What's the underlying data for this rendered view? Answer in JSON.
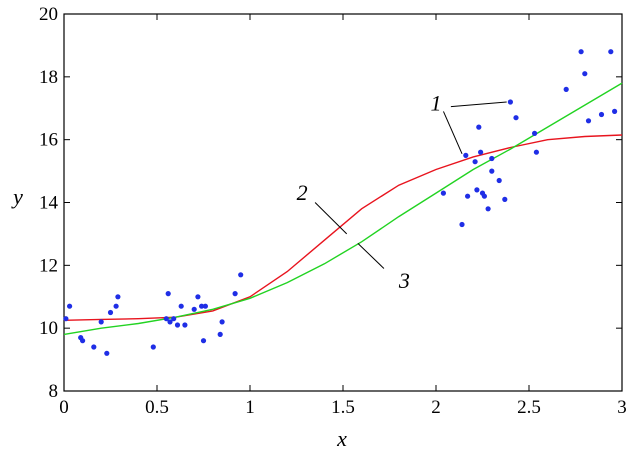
{
  "chart_data": {
    "type": "scatter",
    "xlabel": "x",
    "ylabel": "y",
    "xlim": [
      0,
      3
    ],
    "ylim": [
      8,
      20
    ],
    "xticks": [
      0,
      0.5,
      1,
      1.5,
      2,
      2.5,
      3
    ],
    "xtick_labels": [
      "0",
      "0.5",
      "1",
      "1.5",
      "2",
      "2.5",
      "3"
    ],
    "yticks": [
      8,
      10,
      12,
      14,
      16,
      18,
      20
    ],
    "ytick_labels": [
      "8",
      "10",
      "12",
      "14",
      "16",
      "18",
      "20"
    ],
    "grid": false,
    "legend": "none",
    "points": {
      "color": "#1f2ee6",
      "x": [
        0.01,
        0.03,
        0.09,
        0.1,
        0.16,
        0.2,
        0.23,
        0.25,
        0.28,
        0.29,
        0.48,
        0.55,
        0.56,
        0.57,
        0.59,
        0.61,
        0.63,
        0.65,
        0.7,
        0.72,
        0.74,
        0.75,
        0.76,
        0.84,
        0.85,
        0.92,
        0.95,
        2.04,
        2.14,
        2.16,
        2.17,
        2.21,
        2.22,
        2.23,
        2.24,
        2.25,
        2.26,
        2.28,
        2.3,
        2.3,
        2.34,
        2.37,
        2.4,
        2.43,
        2.53,
        2.54,
        2.7,
        2.78,
        2.8,
        2.82,
        2.89,
        2.94,
        2.96
      ],
      "y": [
        10.3,
        10.7,
        9.7,
        9.6,
        9.4,
        10.2,
        9.2,
        10.5,
        10.7,
        11.0,
        9.4,
        10.3,
        11.1,
        10.2,
        10.3,
        10.1,
        10.7,
        10.1,
        10.6,
        11.0,
        10.7,
        9.6,
        10.7,
        9.8,
        10.2,
        11.1,
        11.7,
        14.3,
        13.3,
        15.5,
        14.2,
        15.3,
        14.4,
        16.4,
        15.6,
        14.3,
        14.2,
        13.8,
        15.4,
        15.0,
        14.7,
        14.1,
        17.2,
        16.7,
        16.2,
        15.6,
        17.6,
        18.8,
        18.1,
        16.6,
        16.8,
        18.8,
        16.9
      ]
    },
    "series": [
      {
        "color": "#e8141e",
        "x": [
          0,
          0.2,
          0.4,
          0.6,
          0.8,
          1.0,
          1.2,
          1.4,
          1.6,
          1.8,
          2.0,
          2.2,
          2.4,
          2.6,
          2.8,
          3.0
        ],
        "values": [
          10.25,
          10.28,
          10.3,
          10.35,
          10.55,
          11.0,
          11.8,
          12.8,
          13.8,
          14.55,
          15.05,
          15.45,
          15.75,
          16.0,
          16.1,
          16.15
        ]
      },
      {
        "color": "#22d322",
        "x": [
          0,
          0.2,
          0.4,
          0.6,
          0.8,
          1.0,
          1.2,
          1.4,
          1.6,
          1.8,
          2.0,
          2.2,
          2.4,
          2.6,
          2.8,
          3.0
        ],
        "values": [
          9.8,
          10.0,
          10.15,
          10.35,
          10.6,
          10.95,
          11.45,
          12.05,
          12.75,
          13.55,
          14.3,
          15.05,
          15.7,
          16.4,
          17.1,
          17.8
        ]
      }
    ],
    "annotations": [
      {
        "text": "1",
        "x": 2.0,
        "y": 17.15,
        "leader": [
          [
            2.08,
            17.05
          ],
          [
            2.38,
            17.2
          ]
        ],
        "leader2": [
          [
            2.04,
            16.9
          ],
          [
            2.14,
            15.55
          ]
        ]
      },
      {
        "text": "2",
        "x": 1.28,
        "y": 14.3,
        "leader": [
          [
            1.35,
            14.0
          ],
          [
            1.52,
            13.0
          ]
        ]
      },
      {
        "text": "3",
        "x": 1.83,
        "y": 11.5,
        "leader": [
          [
            1.72,
            11.9
          ],
          [
            1.58,
            12.7
          ]
        ]
      }
    ]
  }
}
